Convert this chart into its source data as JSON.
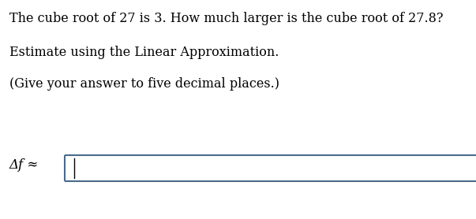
{
  "line1": "The cube root of 27 is 3. How much larger is the cube root of 27.8?",
  "line2": "Estimate using the Linear Approximation.",
  "line3": "(Give your answer to five decimal places.)",
  "label": "Δf ≈",
  "bg_color": "#ffffff",
  "text_color": "#000000",
  "box_border_color": "#4a6a8a",
  "font_size": 11.5,
  "label_font_size": 12
}
